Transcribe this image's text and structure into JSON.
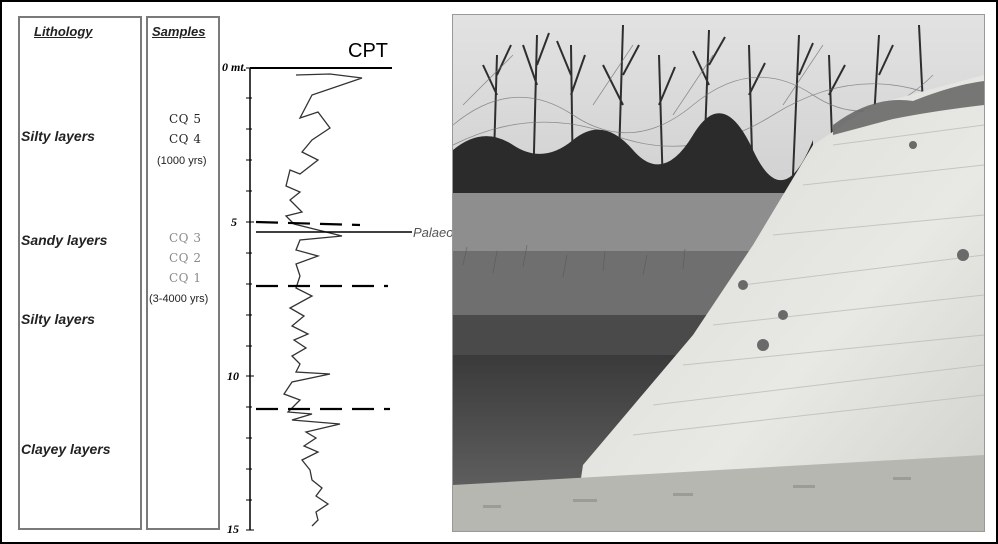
{
  "columns": {
    "lithology_title": "Lithology",
    "samples_title": "Samples"
  },
  "lithology": [
    {
      "label": "Silty layers"
    },
    {
      "label": "Sandy layers"
    },
    {
      "label": "Silty layers"
    },
    {
      "label": "Clayey layers"
    }
  ],
  "samples": [
    {
      "code": "CQ 5"
    },
    {
      "code": "CQ 4"
    },
    {
      "code": "CQ 3"
    },
    {
      "code": "CQ 2"
    },
    {
      "code": "CQ 1"
    }
  ],
  "sample_ages": [
    "(1000 yrs)",
    "(3-4000 yrs)"
  ],
  "cpt": {
    "title": "CPT",
    "depth_labels": [
      "0 mt.",
      "5",
      "10",
      "15"
    ],
    "annotation": "Palaeosoil-Roman age?"
  },
  "colors": {
    "box_border": "#7a7a7a",
    "dark_sample": "#222222",
    "light_sample": "#8a8a8a",
    "annotation": "#555555"
  },
  "photo": {
    "description_icon": "photo-riverbank-outcrop"
  }
}
